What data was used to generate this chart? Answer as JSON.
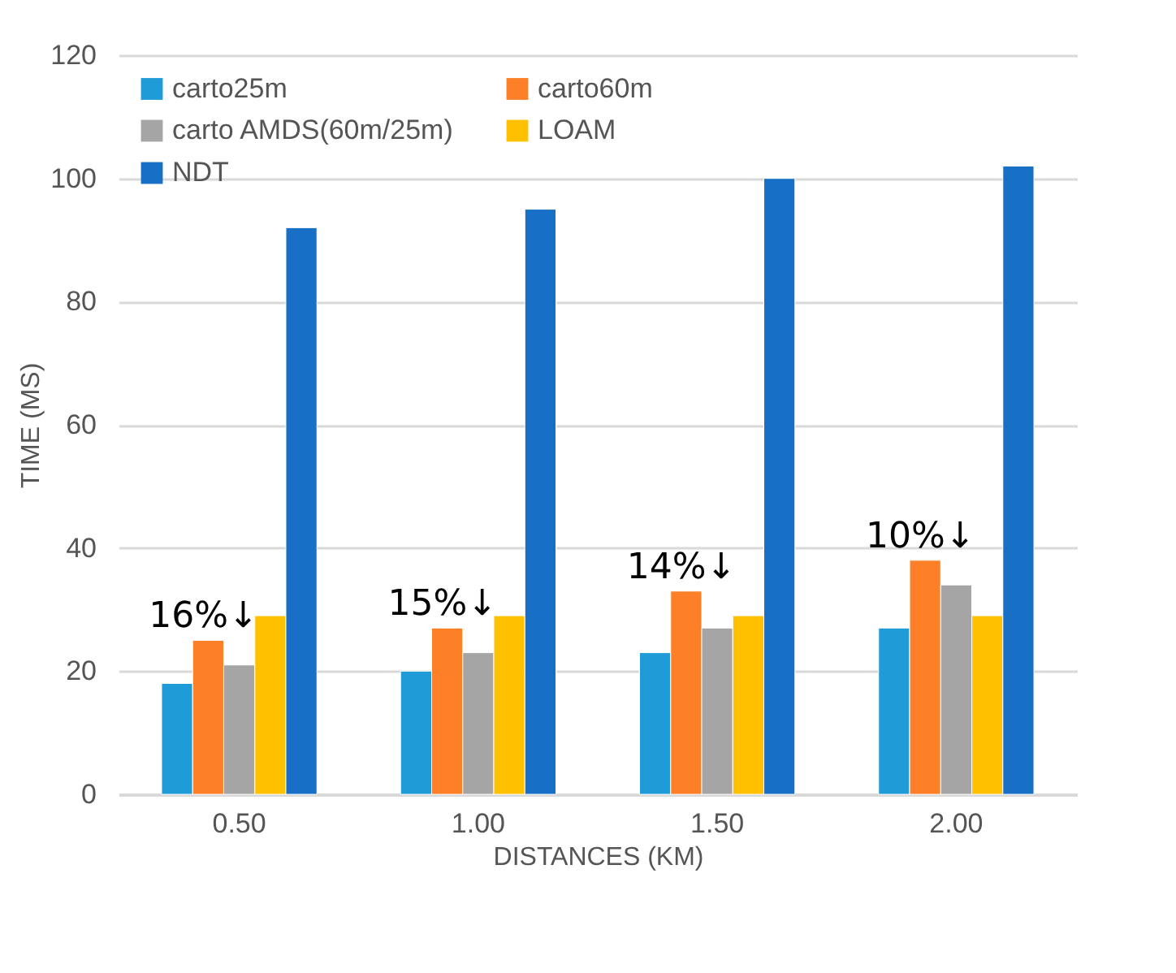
{
  "chart_data": {
    "type": "bar",
    "xlabel": "DISTANCES (KM)",
    "ylabel": "TIME (MS)",
    "categories": [
      "0.50",
      "1.00",
      "1.50",
      "2.00"
    ],
    "series": [
      {
        "name": "carto25m",
        "color": "#1f9bd7",
        "values": [
          18,
          20,
          23,
          27
        ]
      },
      {
        "name": "carto60m",
        "color": "#fd7f27",
        "values": [
          25,
          27,
          33,
          38
        ]
      },
      {
        "name": "carto AMDS(60m/25m)",
        "color": "#a5a5a5",
        "values": [
          21,
          23,
          27,
          34
        ]
      },
      {
        "name": "LOAM",
        "color": "#ffc000",
        "values": [
          29,
          29,
          29,
          29
        ]
      },
      {
        "name": "NDT",
        "color": "#1770c6",
        "values": [
          92,
          95,
          100,
          102
        ]
      }
    ],
    "ylim": [
      0,
      120
    ],
    "yticks": [
      0,
      20,
      40,
      60,
      80,
      100,
      120
    ],
    "grid": "y",
    "legend": "top left",
    "annotations": [
      "16%↓",
      "15%↓",
      "14%↓",
      "10%↓"
    ]
  }
}
